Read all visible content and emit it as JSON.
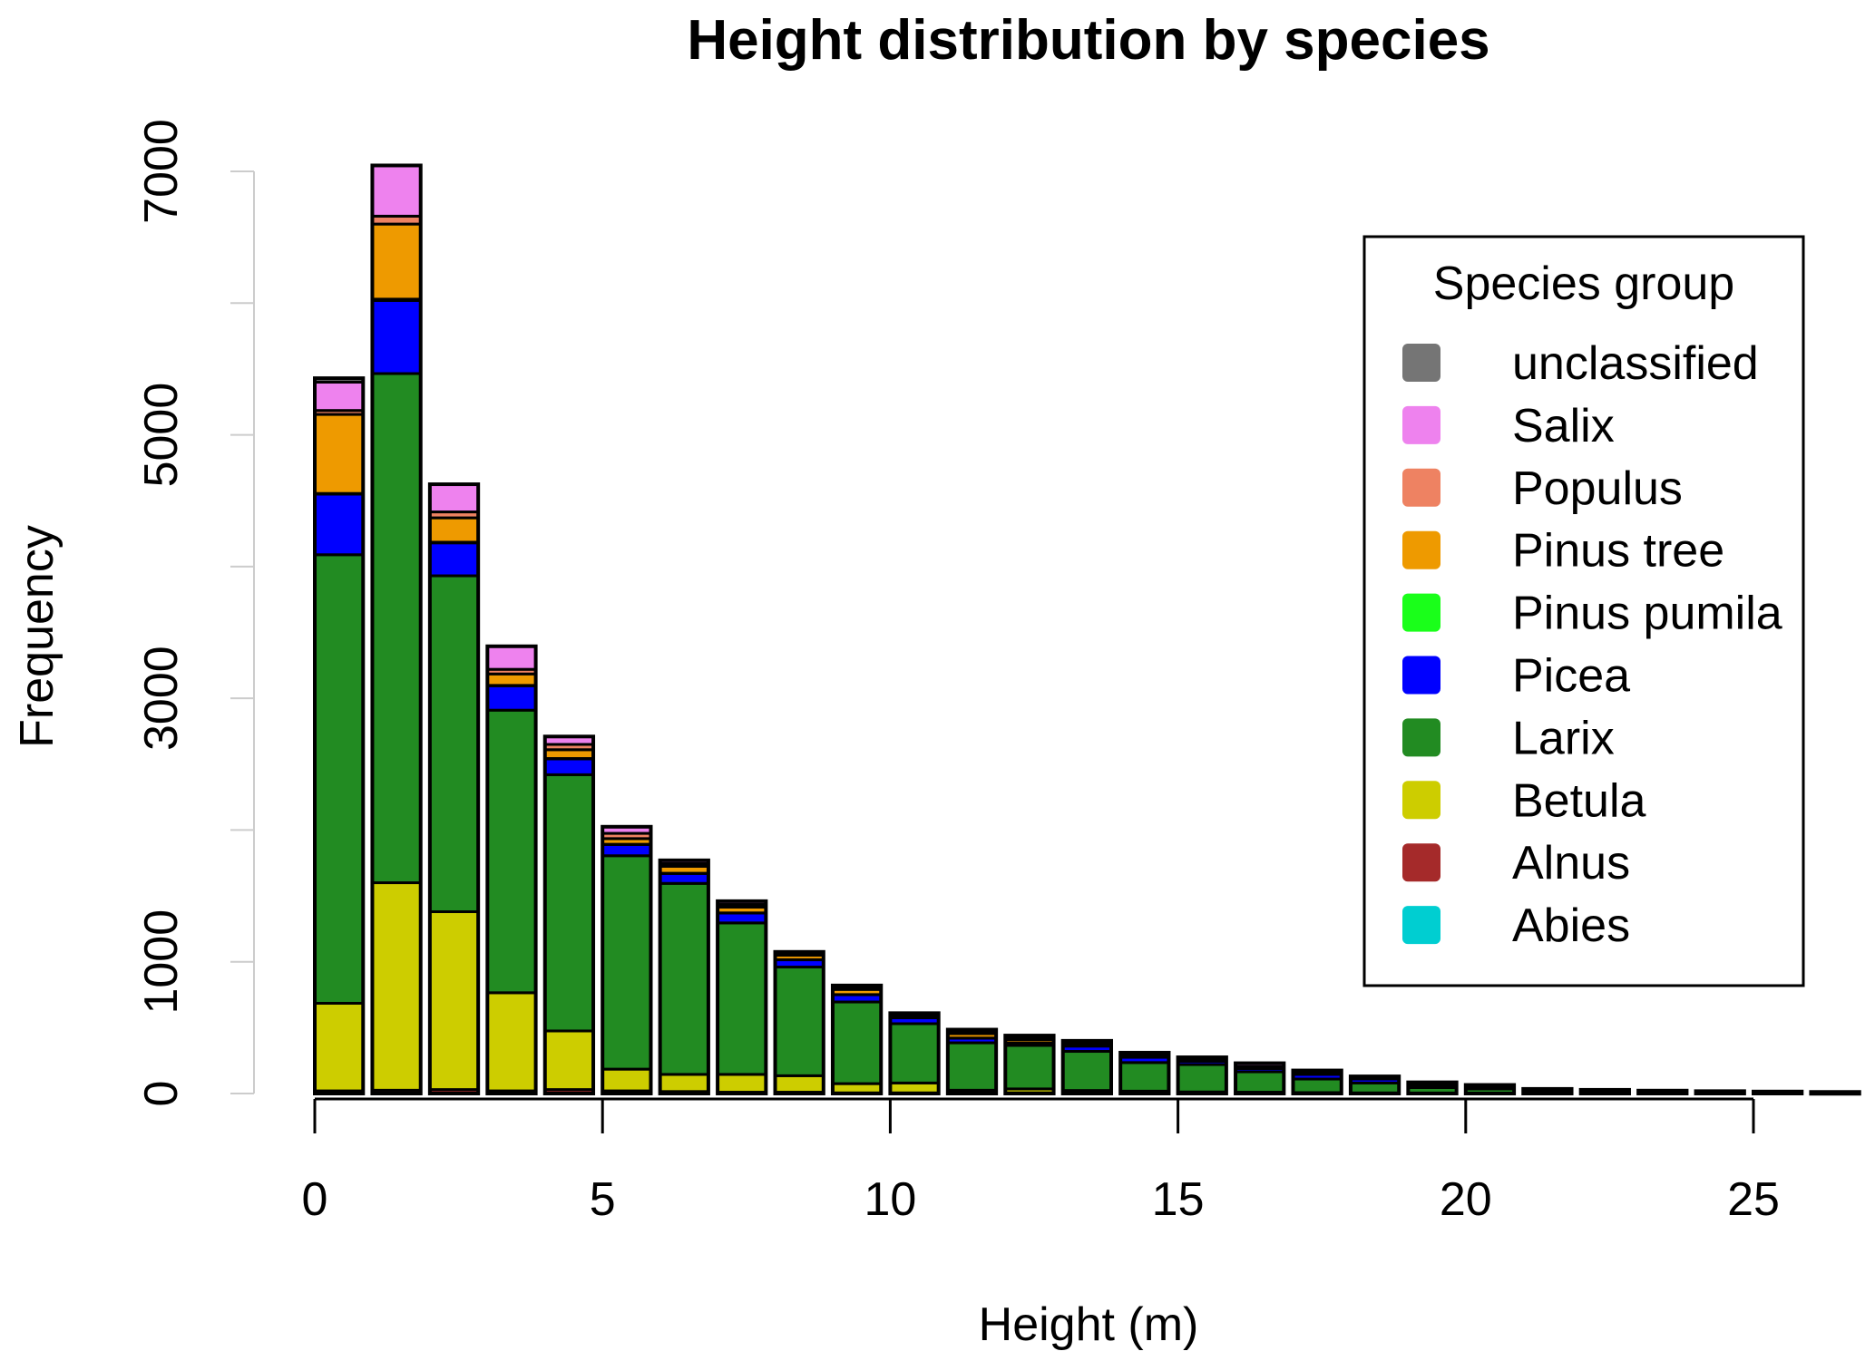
{
  "chart_data": {
    "type": "bar",
    "stacked": true,
    "title": "Height distribution by species",
    "xlabel": "Height (m)",
    "ylabel": "Frequency",
    "xlim": [
      0,
      27
    ],
    "ylim": [
      0,
      7000
    ],
    "x_ticks": [
      0,
      5,
      10,
      15,
      20,
      25
    ],
    "x_tick_labels": [
      "0",
      "5",
      "10",
      "15",
      "20",
      "25"
    ],
    "y_ticks": [
      0,
      1000,
      2000,
      3000,
      4000,
      5000,
      6000,
      7000
    ],
    "y_tick_labels": [
      "0",
      "1000",
      "3000",
      "5000",
      "7000"
    ],
    "y_labeled_ticks": [
      0,
      1000,
      3000,
      5000,
      7000
    ],
    "bin_width_m": 1,
    "bins_start": [
      0,
      1,
      2,
      3,
      4,
      5,
      6,
      7,
      8,
      9,
      10,
      11,
      12,
      13,
      14,
      15,
      16,
      17,
      18,
      19,
      20,
      21,
      22,
      23,
      24,
      25,
      26
    ],
    "grid": false,
    "legend": {
      "title": "Species group",
      "placement": "top-right",
      "entries": [
        "unclassified",
        "Salix",
        "Populus",
        "Pinus tree",
        "Pinus pumila",
        "Picea",
        "Larix",
        "Betula",
        "Alnus",
        "Abies"
      ]
    },
    "series": [
      {
        "name": "Abies",
        "color": "#00CED1",
        "values": [
          0,
          0,
          0,
          0,
          0,
          0,
          0,
          0,
          0,
          0,
          0,
          0,
          0,
          0,
          0,
          0,
          0,
          0,
          0,
          0,
          0,
          0,
          0,
          0,
          0,
          0,
          0
        ]
      },
      {
        "name": "Alnus",
        "color": "#A52A2A",
        "values": [
          20,
          25,
          30,
          20,
          30,
          20,
          15,
          10,
          10,
          5,
          5,
          5,
          5,
          3,
          3,
          2,
          2,
          2,
          1,
          1,
          1,
          0,
          0,
          0,
          0,
          0,
          0
        ]
      },
      {
        "name": "Betula",
        "color": "#CDCD00",
        "values": [
          665,
          1575,
          1350,
          745,
          445,
          165,
          130,
          135,
          125,
          70,
          75,
          20,
          30,
          20,
          15,
          10,
          8,
          5,
          4,
          3,
          2,
          2,
          1,
          1,
          1,
          0,
          0
        ]
      },
      {
        "name": "Larix",
        "color": "#228B22",
        "values": [
          3405,
          3865,
          2550,
          2145,
          1945,
          1620,
          1450,
          1150,
          825,
          620,
          450,
          360,
          330,
          297,
          217,
          208,
          155,
          103,
          75,
          41,
          32,
          18,
          14,
          11,
          9,
          7,
          6
        ]
      },
      {
        "name": "Picea",
        "color": "#0000FF",
        "values": [
          460,
          555,
          250,
          185,
          120,
          85,
          75,
          75,
          55,
          55,
          45,
          35,
          20,
          40,
          40,
          25,
          25,
          35,
          30,
          15,
          10,
          6,
          4,
          3,
          2,
          2,
          1
        ]
      },
      {
        "name": "Pinus pumila",
        "color": "#1AFF1A",
        "values": [
          5,
          10,
          5,
          3,
          3,
          2,
          2,
          1,
          1,
          1,
          1,
          1,
          0,
          0,
          0,
          0,
          0,
          0,
          0,
          0,
          0,
          0,
          0,
          0,
          0,
          0,
          0
        ]
      },
      {
        "name": "Pinus tree",
        "color": "#EE9A00",
        "values": [
          600,
          570,
          185,
          87,
          67,
          43,
          53,
          44,
          34,
          39,
          14,
          34,
          25,
          10,
          10,
          10,
          10,
          10,
          5,
          5,
          5,
          3,
          2,
          2,
          1,
          1,
          1
        ]
      },
      {
        "name": "Populus",
        "color": "#EE8262",
        "values": [
          30,
          60,
          45,
          35,
          40,
          40,
          20,
          20,
          10,
          10,
          10,
          10,
          10,
          10,
          5,
          5,
          5,
          5,
          5,
          5,
          5,
          3,
          2,
          2,
          2,
          2,
          2
        ]
      },
      {
        "name": "Salix",
        "color": "#EE82EE",
        "values": [
          215,
          385,
          210,
          175,
          60,
          50,
          25,
          25,
          15,
          20,
          10,
          20,
          20,
          20,
          20,
          15,
          25,
          15,
          10,
          15,
          10,
          3,
          5,
          3,
          3,
          3,
          2
        ]
      },
      {
        "name": "unclassified",
        "color": "#757575",
        "values": [
          30,
          0,
          0,
          0,
          0,
          0,
          0,
          0,
          0,
          0,
          0,
          0,
          0,
          0,
          0,
          0,
          0,
          0,
          0,
          0,
          0,
          0,
          0,
          0,
          0,
          0,
          0
        ]
      }
    ]
  }
}
